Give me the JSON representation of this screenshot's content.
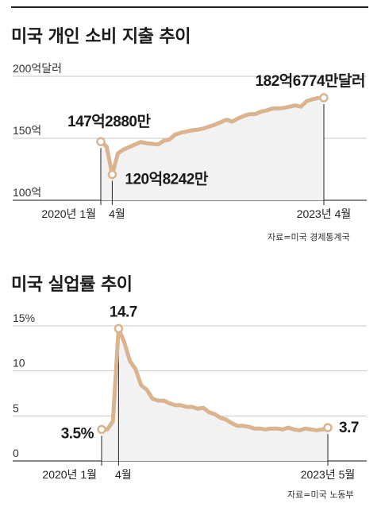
{
  "chart_data": [
    {
      "type": "line",
      "title": "미국 개인 소비 지출 추이",
      "ytick_labels": [
        "200억달러",
        "150억",
        "100억"
      ],
      "yticks": [
        200,
        150,
        100
      ],
      "ylim": [
        100,
        200
      ],
      "xtick_labels": [
        "2020년 1월",
        "4월",
        "2023년 4월"
      ],
      "x": [
        0,
        1,
        2,
        3,
        4,
        5,
        6,
        7,
        8,
        9,
        10,
        11,
        12,
        13,
        14,
        15,
        16,
        17,
        18,
        19,
        20,
        21,
        22,
        23,
        24,
        25,
        26,
        27,
        28,
        29,
        30,
        31,
        32,
        33,
        34,
        35,
        36,
        37,
        38,
        39
      ],
      "values": [
        147.29,
        143.5,
        120.82,
        138,
        141,
        143,
        145,
        147,
        146,
        145.5,
        145,
        148,
        149,
        153,
        154.5,
        155.5,
        156.5,
        157,
        158,
        159.5,
        161,
        163,
        165,
        163.5,
        166,
        168,
        169.5,
        169.5,
        171.5,
        172.5,
        174,
        174,
        174.5,
        175.5,
        176.5,
        175.5,
        180,
        181.5,
        182.5,
        182.68
      ],
      "annotations": [
        {
          "index": 0,
          "label": "147억2880만"
        },
        {
          "index": 2,
          "label": "120억8242만"
        },
        {
          "index": 39,
          "label": "182억6774만달러"
        }
      ],
      "source": "자료=미국 경제통계국",
      "grid": true,
      "color": "#d9b48f"
    },
    {
      "type": "line",
      "title": "미국 실업률 추이",
      "ytick_labels": [
        "15%",
        "10",
        "5",
        "0"
      ],
      "yticks": [
        15,
        10,
        5,
        0
      ],
      "ylim": [
        0,
        15
      ],
      "xtick_labels": [
        "2020년 1월",
        "4월",
        "2023년 5월"
      ],
      "x": [
        0,
        1,
        2,
        3,
        4,
        5,
        6,
        7,
        8,
        9,
        10,
        11,
        12,
        13,
        14,
        15,
        16,
        17,
        18,
        19,
        20,
        21,
        22,
        23,
        24,
        25,
        26,
        27,
        28,
        29,
        30,
        31,
        32,
        33,
        34,
        35,
        36,
        37,
        38,
        39,
        40
      ],
      "values": [
        3.5,
        3.5,
        4.4,
        14.7,
        13.2,
        11.1,
        10.2,
        8.4,
        7.9,
        6.9,
        6.7,
        6.7,
        6.4,
        6.2,
        6.2,
        6.0,
        6.0,
        5.8,
        5.9,
        5.4,
        5.2,
        4.8,
        4.6,
        4.2,
        3.9,
        3.9,
        3.8,
        3.6,
        3.6,
        3.5,
        3.6,
        3.6,
        3.5,
        3.7,
        3.5,
        3.4,
        3.6,
        3.5,
        3.4,
        3.5,
        3.7
      ],
      "annotations": [
        {
          "index": 0,
          "label": "3.5%"
        },
        {
          "index": 3,
          "label": "14.7"
        },
        {
          "index": 40,
          "label": "3.7"
        }
      ],
      "source": "자료=미국 노동부",
      "grid": true,
      "color": "#d9b48f"
    }
  ]
}
